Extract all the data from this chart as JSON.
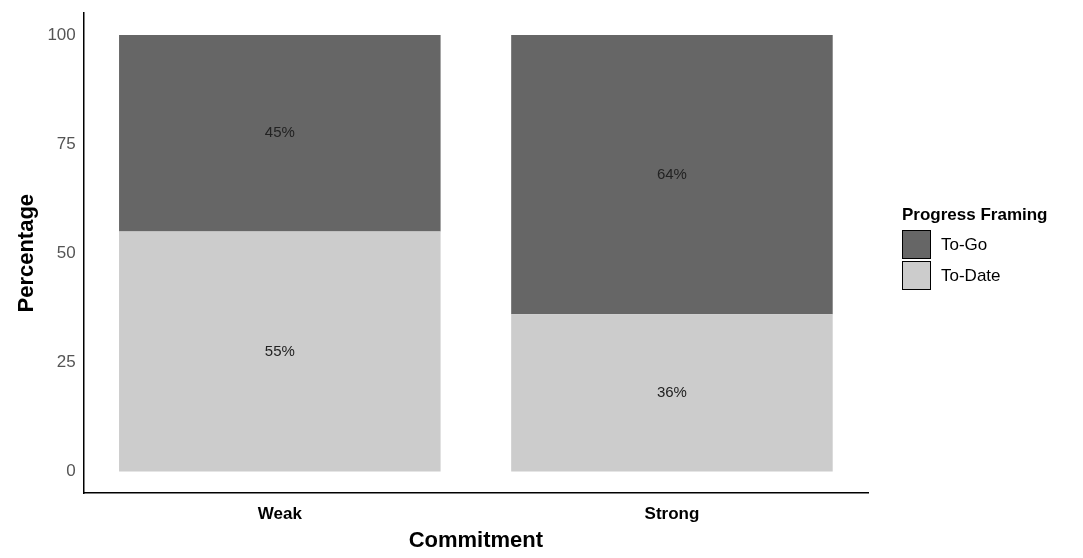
{
  "chart_data": {
    "type": "bar",
    "stacked": true,
    "xlabel": "Commitment",
    "ylabel": "Percentage",
    "legend_title": "Progress Framing",
    "legend": "right",
    "grid": false,
    "categories": [
      "Weak",
      "Strong"
    ],
    "ylim": [
      -5,
      105
    ],
    "yticks": [
      0,
      25,
      50,
      75,
      100
    ],
    "series": [
      {
        "name": "To-Date",
        "color": "#cccccc",
        "values": [
          55,
          36
        ],
        "value_labels": [
          "55%",
          "36%"
        ]
      },
      {
        "name": "To-Go",
        "color": "#666666",
        "values": [
          45,
          64
        ],
        "value_labels": [
          "45%",
          "64%"
        ]
      }
    ]
  }
}
